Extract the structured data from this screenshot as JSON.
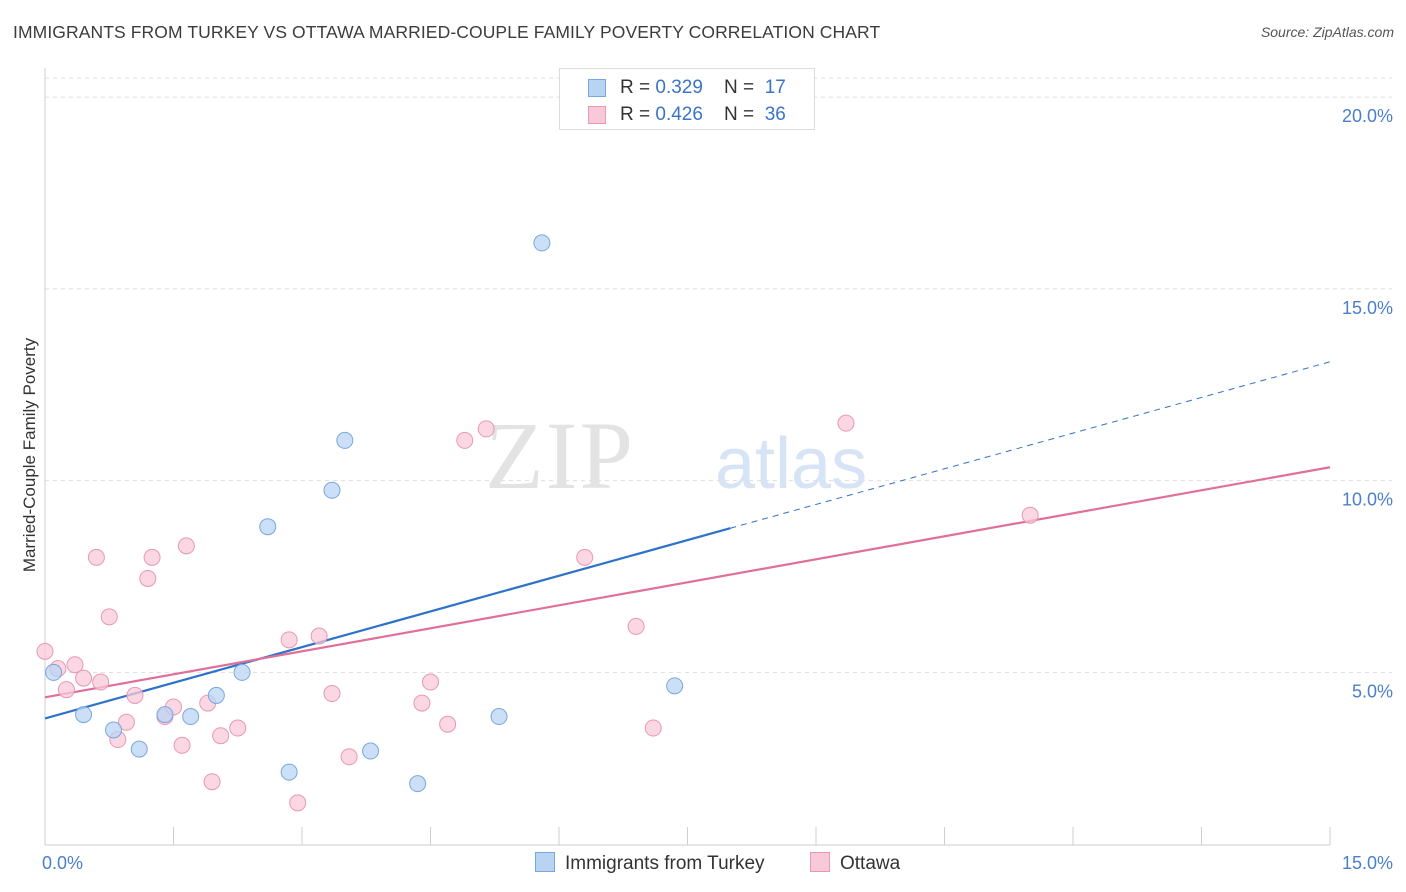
{
  "title": "IMMIGRANTS FROM TURKEY VS OTTAWA MARRIED-COUPLE FAMILY POVERTY CORRELATION CHART",
  "source": "Source: ZipAtlas.com",
  "watermark": {
    "zip": "ZIP",
    "atlas": "atlas"
  },
  "legend": {
    "rows": [
      {
        "r_label": "R = ",
        "r_value": "0.329",
        "n_label": "N = ",
        "n_value": "17",
        "color": "#b9d4f3",
        "border": "#7aa6de"
      },
      {
        "r_label": "R = ",
        "r_value": "0.426",
        "n_label": "N = ",
        "n_value": "36",
        "color": "#f8c9d8",
        "border": "#e898b3"
      }
    ]
  },
  "chart_data": {
    "type": "scatter",
    "title": "IMMIGRANTS FROM TURKEY VS OTTAWA MARRIED-COUPLE FAMILY POVERTY CORRELATION CHART",
    "xlabel": "",
    "ylabel": "Married-Couple Family Poverty",
    "xlim": [
      0,
      15
    ],
    "ylim": [
      0.5,
      20.5
    ],
    "x_tick_labels": [
      {
        "value": 0,
        "label": "0.0%"
      },
      {
        "value": 15,
        "label": "15.0%"
      }
    ],
    "y_tick_labels": [
      {
        "value": 5,
        "label": "5.0%"
      },
      {
        "value": 10,
        "label": "10.0%"
      },
      {
        "value": 15,
        "label": "15.0%"
      },
      {
        "value": 20,
        "label": "20.0%"
      }
    ],
    "series": [
      {
        "name": "Immigrants from Turkey",
        "color": "#b9d4f3",
        "edge": "#7aa6de",
        "line_color": "#2e73c8",
        "trend": {
          "x_start": 0,
          "y_start": 3.8,
          "x_solid_end": 8.0,
          "x_end": 15,
          "y_end": 13.1
        },
        "points": [
          {
            "x": 0.1,
            "y": 5.0
          },
          {
            "x": 0.45,
            "y": 3.9
          },
          {
            "x": 0.8,
            "y": 3.5
          },
          {
            "x": 1.1,
            "y": 3.0
          },
          {
            "x": 1.4,
            "y": 3.9
          },
          {
            "x": 1.7,
            "y": 3.85
          },
          {
            "x": 2.0,
            "y": 4.4
          },
          {
            "x": 2.3,
            "y": 5.0
          },
          {
            "x": 2.6,
            "y": 8.8
          },
          {
            "x": 2.85,
            "y": 2.4
          },
          {
            "x": 3.35,
            "y": 9.75
          },
          {
            "x": 3.5,
            "y": 11.05
          },
          {
            "x": 3.8,
            "y": 2.95
          },
          {
            "x": 4.35,
            "y": 2.1
          },
          {
            "x": 5.3,
            "y": 3.85
          },
          {
            "x": 5.8,
            "y": 16.2
          },
          {
            "x": 7.35,
            "y": 4.65
          }
        ]
      },
      {
        "name": "Ottawa",
        "color": "#f8c9d8",
        "edge": "#e898b3",
        "line_color": "#e0709a",
        "trend": {
          "x_start": 0,
          "y_start": 4.35,
          "x_end": 15,
          "y_end": 10.35
        },
        "points": [
          {
            "x": 0.0,
            "y": 5.55
          },
          {
            "x": 0.15,
            "y": 5.1
          },
          {
            "x": 0.25,
            "y": 4.55
          },
          {
            "x": 0.35,
            "y": 5.2
          },
          {
            "x": 0.45,
            "y": 4.85
          },
          {
            "x": 0.6,
            "y": 8.0
          },
          {
            "x": 0.65,
            "y": 4.75
          },
          {
            "x": 0.75,
            "y": 6.45
          },
          {
            "x": 0.85,
            "y": 3.25
          },
          {
            "x": 0.95,
            "y": 3.7
          },
          {
            "x": 1.05,
            "y": 4.4
          },
          {
            "x": 1.2,
            "y": 7.45
          },
          {
            "x": 1.25,
            "y": 8.0
          },
          {
            "x": 1.4,
            "y": 3.85
          },
          {
            "x": 1.5,
            "y": 4.1
          },
          {
            "x": 1.6,
            "y": 3.1
          },
          {
            "x": 1.65,
            "y": 8.3
          },
          {
            "x": 1.9,
            "y": 4.2
          },
          {
            "x": 1.95,
            "y": 2.15
          },
          {
            "x": 2.05,
            "y": 3.35
          },
          {
            "x": 2.25,
            "y": 3.55
          },
          {
            "x": 2.85,
            "y": 5.85
          },
          {
            "x": 2.95,
            "y": 1.6
          },
          {
            "x": 3.2,
            "y": 5.95
          },
          {
            "x": 3.35,
            "y": 4.45
          },
          {
            "x": 3.55,
            "y": 2.8
          },
          {
            "x": 4.4,
            "y": 4.2
          },
          {
            "x": 4.5,
            "y": 4.75
          },
          {
            "x": 4.7,
            "y": 3.65
          },
          {
            "x": 4.9,
            "y": 11.05
          },
          {
            "x": 5.15,
            "y": 11.35
          },
          {
            "x": 6.3,
            "y": 8.0
          },
          {
            "x": 6.9,
            "y": 6.2
          },
          {
            "x": 7.1,
            "y": 3.55
          },
          {
            "x": 9.35,
            "y": 11.5
          },
          {
            "x": 11.5,
            "y": 9.1
          }
        ]
      }
    ],
    "grid": true,
    "legend_position": "top-center"
  }
}
